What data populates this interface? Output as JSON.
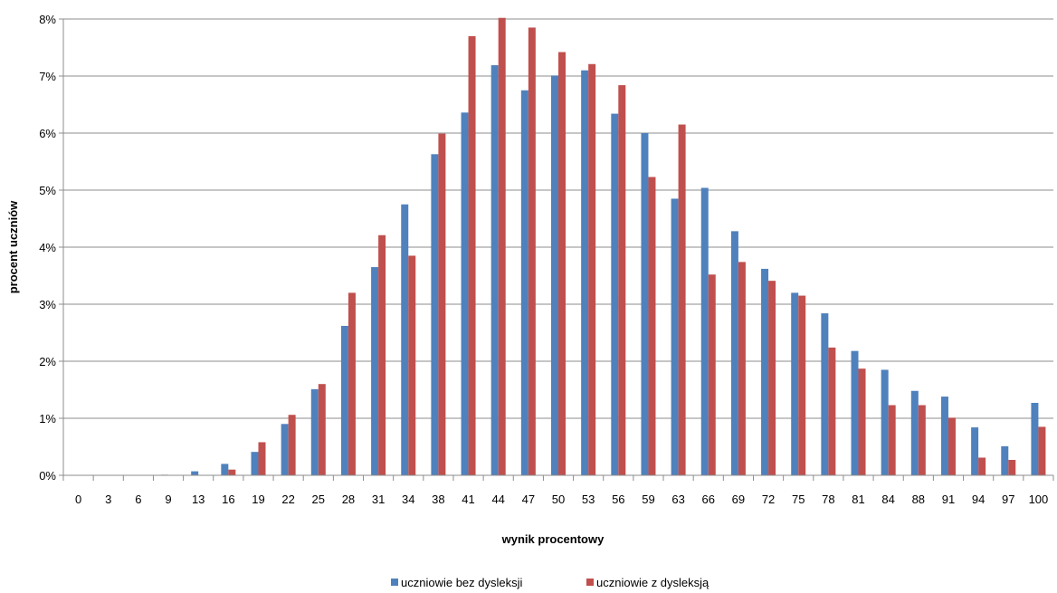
{
  "chart_data": {
    "type": "bar",
    "xlabel": "wynik procentowy",
    "ylabel": "procent  uczniów",
    "ylim": [
      0,
      8
    ],
    "yticks": [
      "0%",
      "1%",
      "2%",
      "3%",
      "4%",
      "5%",
      "6%",
      "7%",
      "8%"
    ],
    "grid": true,
    "legend_position": "bottom",
    "categories": [
      "0",
      "3",
      "6",
      "9",
      "13",
      "16",
      "19",
      "22",
      "25",
      "28",
      "31",
      "34",
      "38",
      "41",
      "44",
      "47",
      "50",
      "53",
      "56",
      "59",
      "63",
      "66",
      "69",
      "72",
      "75",
      "78",
      "81",
      "84",
      "88",
      "91",
      "94",
      "97",
      "100"
    ],
    "series": [
      {
        "name": "uczniowie bez dysleksji",
        "color": "#4F81BD",
        "values": [
          0,
          0,
          0,
          0.01,
          0.07,
          0.2,
          0.41,
          0.9,
          1.51,
          2.62,
          3.65,
          4.75,
          5.63,
          6.36,
          7.19,
          6.75,
          7.01,
          7.1,
          6.34,
          6.0,
          4.85,
          5.04,
          4.28,
          3.62,
          3.2,
          2.84,
          2.18,
          1.85,
          1.48,
          1.38,
          0.84,
          0.51,
          1.27
        ]
      },
      {
        "name": "uczniowie z dysleksją",
        "color": "#C0504D",
        "values": [
          0,
          0,
          0,
          0,
          0,
          0.1,
          0.58,
          1.06,
          1.6,
          3.2,
          4.21,
          3.85,
          5.99,
          7.7,
          8.02,
          7.85,
          7.42,
          7.21,
          6.84,
          5.23,
          6.15,
          3.52,
          3.74,
          3.41,
          3.15,
          2.24,
          1.87,
          1.23,
          1.23,
          1.01,
          0.31,
          0.27,
          0.85
        ]
      }
    ]
  }
}
